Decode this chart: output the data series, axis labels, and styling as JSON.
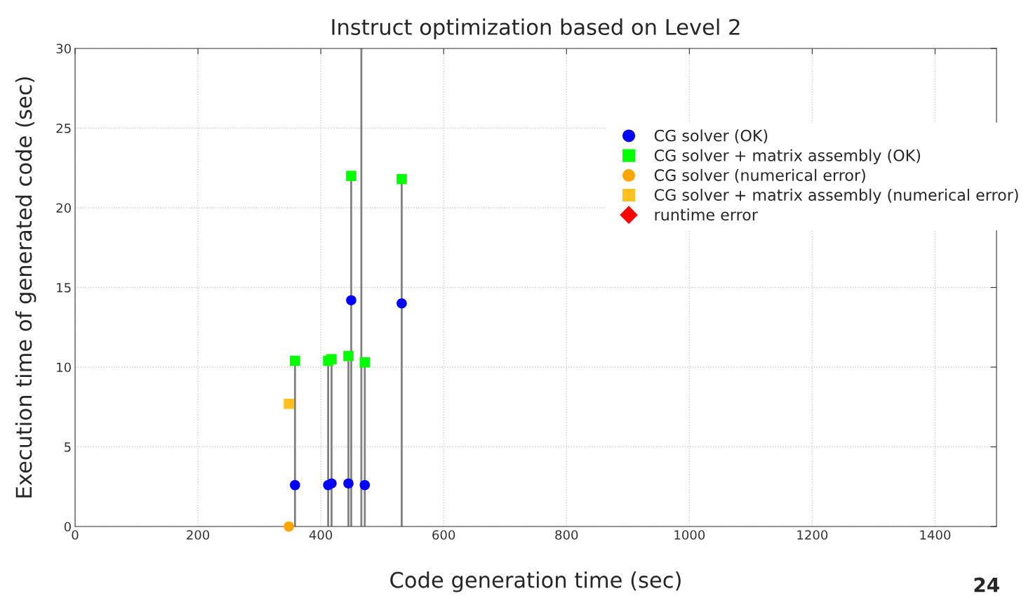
{
  "chart_data": {
    "type": "scatter",
    "title": "Instruct optimization based on Level 2",
    "xlabel": "Code generation time (sec)",
    "ylabel": "Execution time of generated code (sec)",
    "xlim": [
      0,
      1500
    ],
    "xticks": [
      0,
      200,
      400,
      600,
      800,
      1000,
      1200,
      1400
    ],
    "ylim": [
      0,
      30
    ],
    "yticks": [
      0,
      5,
      10,
      15,
      20,
      25,
      30
    ],
    "grid": true,
    "legend": "top right",
    "series": [
      {
        "name": "CG solver (OK)",
        "color": "#0000ff",
        "marker": "circle",
        "x": [
          358,
          412,
          417.5,
          445,
          449.5,
          471.6,
          531.7
        ],
        "values": [
          2.6,
          2.6,
          2.7,
          2.7,
          14.2,
          2.6,
          14.0
        ]
      },
      {
        "name": "CG solver + matrix assembly (OK)",
        "type": "lollipop",
        "color": "#00ff00",
        "marker": "square",
        "x": [
          358,
          412,
          417.5,
          445,
          449.5,
          471.6,
          531.7
        ],
        "values": [
          10.4,
          10.4,
          10.5,
          10.7,
          22.0,
          10.3,
          21.8
        ]
      },
      {
        "name": "CG solver (numerical error)",
        "color": "#ffa500",
        "marker": "circle",
        "x": [
          348
        ],
        "values": [
          0
        ]
      },
      {
        "name": "CG solver + matrix assembly (numerical error)",
        "color": "#ffc020",
        "marker": "square",
        "x": [
          348
        ],
        "values": [
          7.7
        ]
      },
      {
        "name": "runtime error",
        "color": "#ff0000",
        "marker": "diamond"
      }
    ],
    "ref_lines": [
      {
        "axis": "x",
        "value": 466,
        "color": "#808080"
      }
    ],
    "annotations": [
      "24"
    ]
  }
}
